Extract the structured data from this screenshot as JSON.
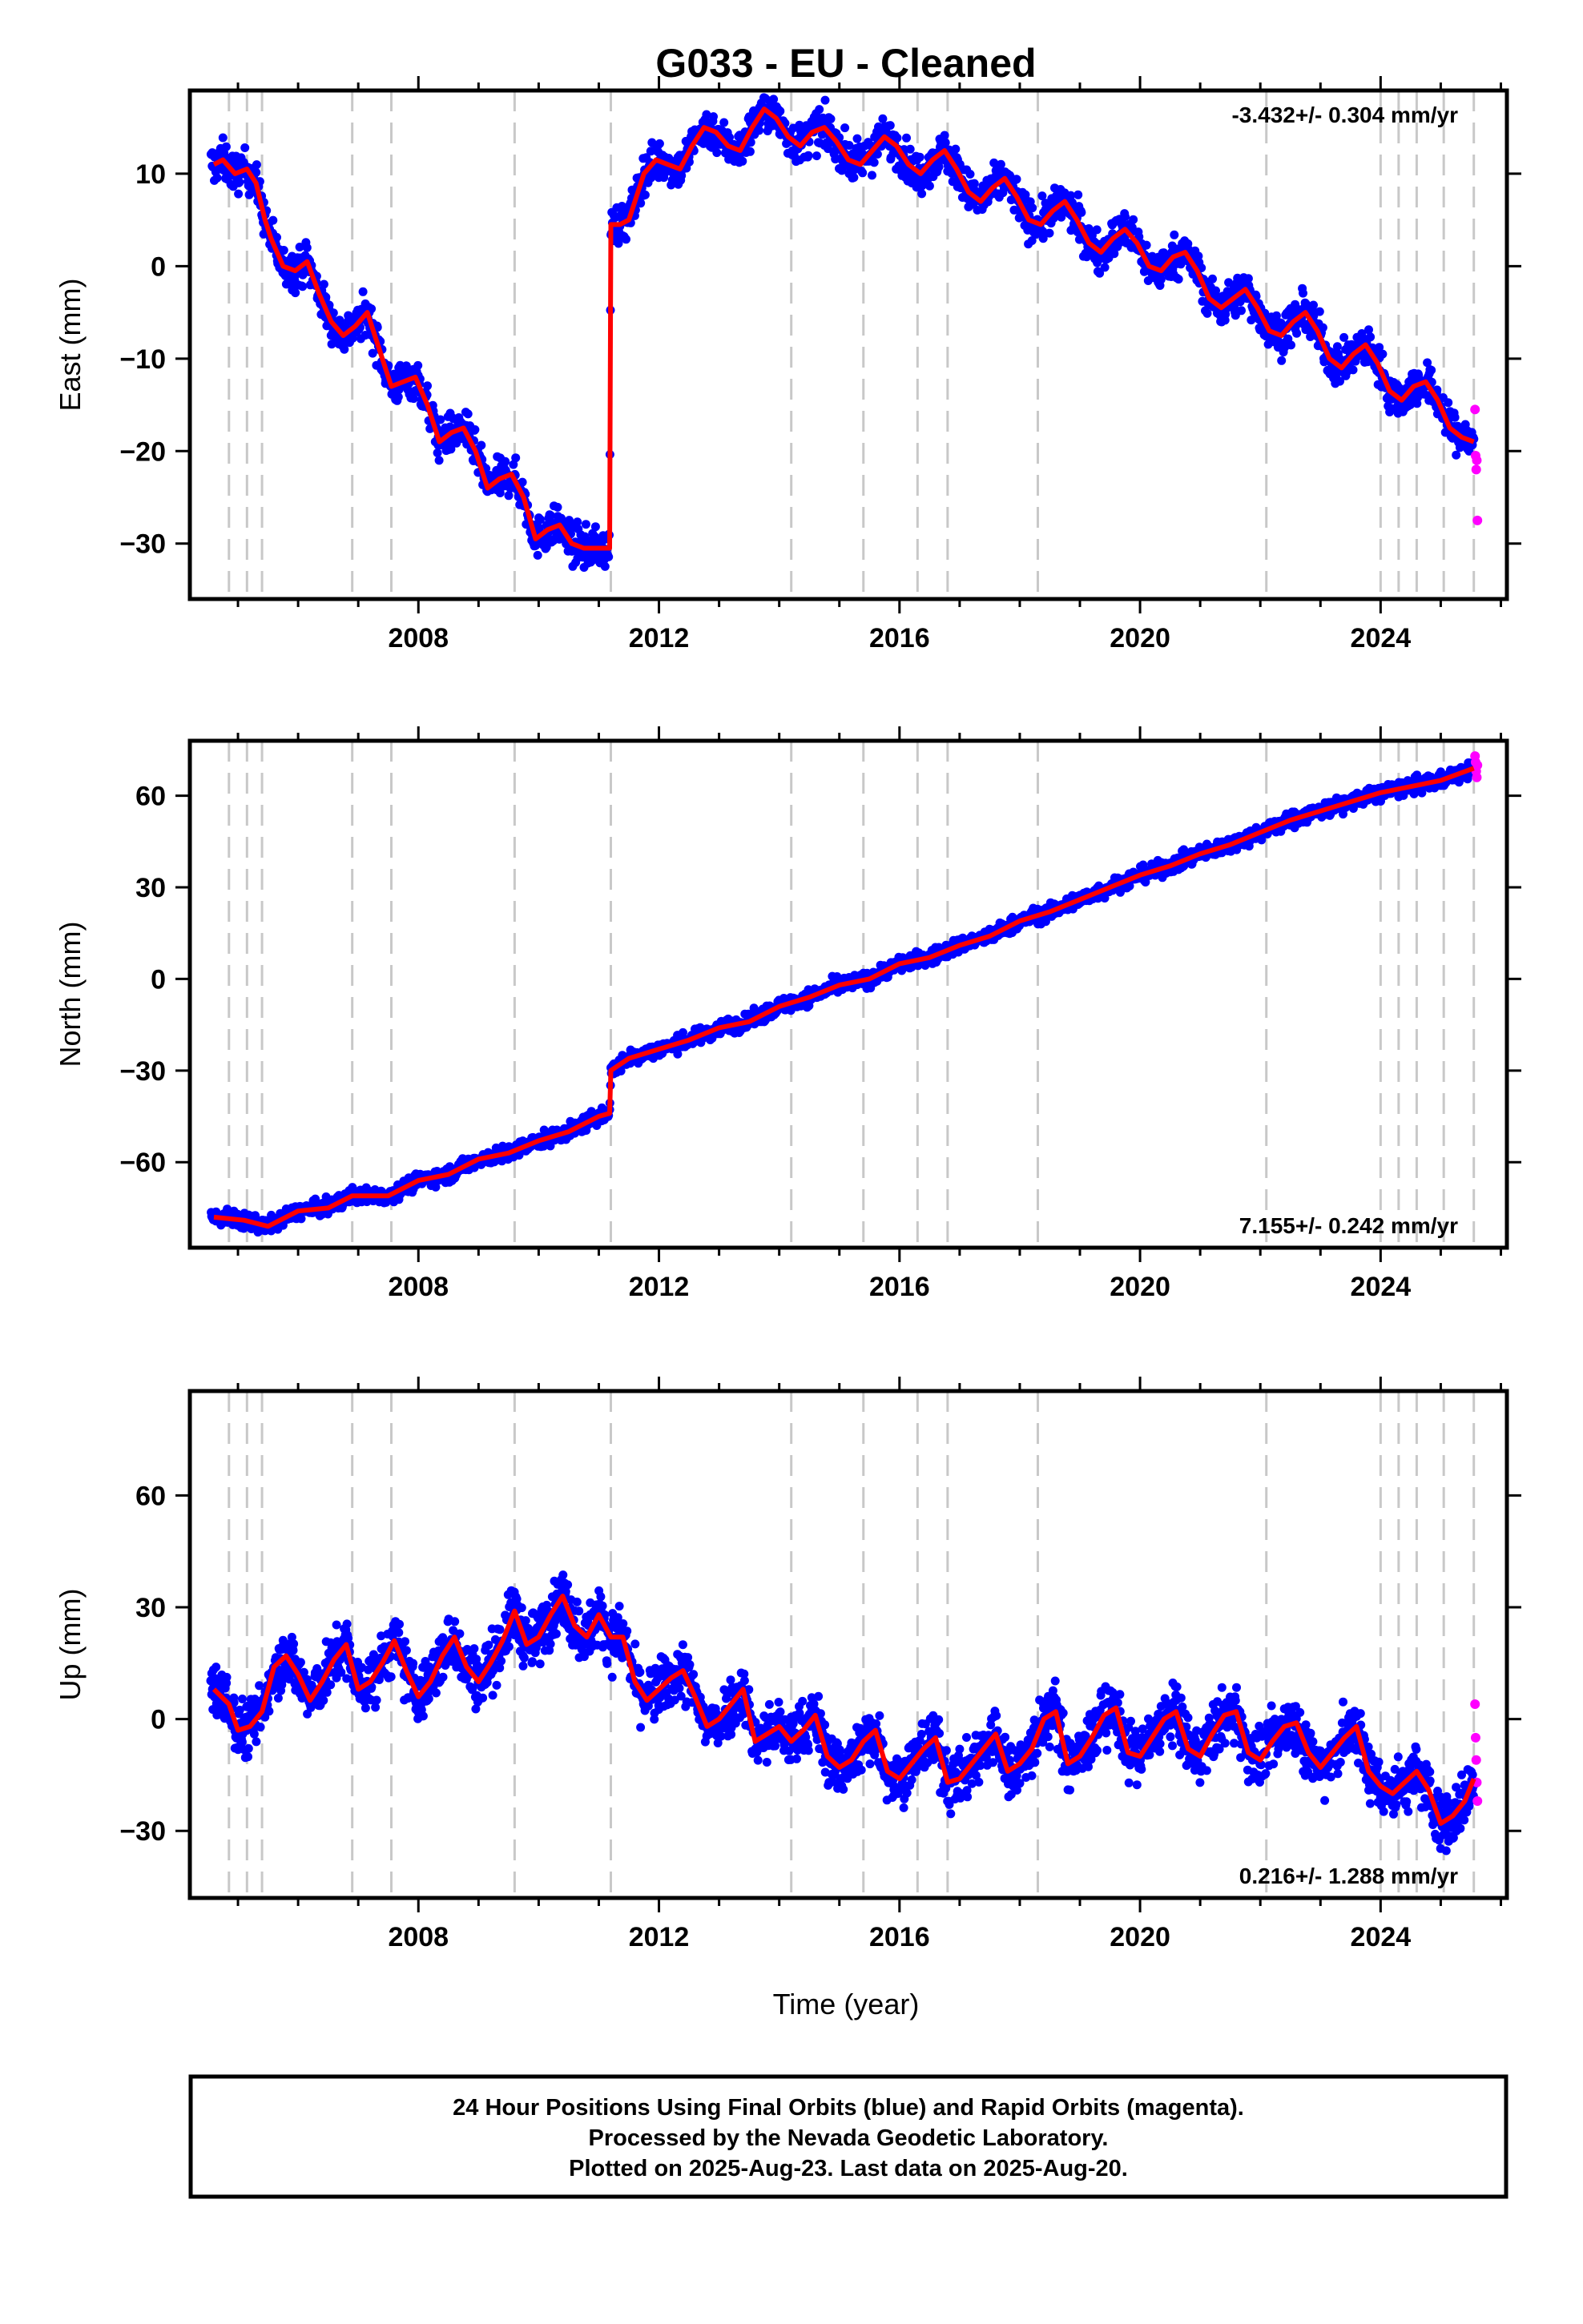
{
  "title": "G033  - EU - Cleaned",
  "colors": {
    "final_orbits": "#0000ff",
    "rapid_orbits": "#ff00ff",
    "model": "#ff0000",
    "event_lines": "#c8c8c8",
    "frame": "#000000"
  },
  "chart_data": [
    {
      "type": "scatter",
      "ylabel": "East (mm)",
      "xlabel": "",
      "xlim": [
        2004.2,
        2026.1
      ],
      "ylim": [
        -36,
        19
      ],
      "yticks": [
        -30,
        -20,
        -10,
        0,
        10
      ],
      "xticks": [
        2008,
        2012,
        2016,
        2020,
        2024
      ],
      "grid": false,
      "rate_label": "-3.432+/- 0.304 mm/yr",
      "rate_position": "top-right",
      "event_lines": [
        2004.85,
        2005.15,
        2005.4,
        2006.9,
        2007.55,
        2009.6,
        2011.2,
        2014.2,
        2015.4,
        2016.3,
        2016.8,
        2018.3,
        2022.1,
        2024.0,
        2024.3,
        2024.6,
        2025.05,
        2025.55
      ],
      "series": [
        {
          "name": "Final Orbits (blue)",
          "style": "points",
          "x_range": [
            2004.55,
            2025.55
          ],
          "scatter_halfwidth_mm": 2.5,
          "count": 2400
        },
        {
          "name": "Rapid Orbits (magenta)",
          "style": "points",
          "x": [
            2025.57,
            2025.58,
            2025.59,
            2025.6,
            2025.61
          ],
          "y": [
            -15.5,
            -20.5,
            -22,
            -21,
            -27.5
          ]
        },
        {
          "name": "model",
          "style": "line",
          "x": [
            2004.6,
            2004.75,
            2004.95,
            2005.15,
            2005.3,
            2005.45,
            2005.55,
            2005.75,
            2005.95,
            2006.15,
            2006.35,
            2006.55,
            2006.75,
            2006.95,
            2007.15,
            2007.35,
            2007.55,
            2007.75,
            2007.95,
            2008.15,
            2008.35,
            2008.55,
            2008.75,
            2008.95,
            2009.15,
            2009.35,
            2009.55,
            2009.75,
            2009.95,
            2010.15,
            2010.35,
            2010.55,
            2010.75,
            2010.95,
            2011.18,
            2011.2,
            2011.35,
            2011.5,
            2011.75,
            2011.95,
            2012.15,
            2012.35,
            2012.55,
            2012.75,
            2012.95,
            2013.15,
            2013.35,
            2013.55,
            2013.75,
            2013.95,
            2014.15,
            2014.35,
            2014.55,
            2014.75,
            2014.95,
            2015.15,
            2015.35,
            2015.55,
            2015.75,
            2015.95,
            2016.15,
            2016.35,
            2016.55,
            2016.75,
            2016.95,
            2017.15,
            2017.35,
            2017.55,
            2017.75,
            2017.95,
            2018.15,
            2018.35,
            2018.55,
            2018.75,
            2018.95,
            2019.15,
            2019.35,
            2019.55,
            2019.75,
            2019.95,
            2020.15,
            2020.35,
            2020.55,
            2020.75,
            2020.95,
            2021.15,
            2021.35,
            2021.55,
            2021.75,
            2021.95,
            2022.15,
            2022.35,
            2022.55,
            2022.75,
            2022.95,
            2023.15,
            2023.35,
            2023.55,
            2023.75,
            2023.95,
            2024.15,
            2024.35,
            2024.55,
            2024.75,
            2024.95,
            2025.15,
            2025.35,
            2025.55
          ],
          "y": [
            11,
            11.5,
            10,
            10.5,
            9,
            5,
            3,
            0,
            -0.5,
            0.5,
            -3,
            -6,
            -7.5,
            -6.5,
            -5,
            -9,
            -13,
            -12.5,
            -12,
            -15,
            -19,
            -18,
            -17.5,
            -20,
            -24,
            -23,
            -22.5,
            -25,
            -29.5,
            -28.5,
            -28,
            -30,
            -30.5,
            -30.5,
            -30.5,
            4.5,
            4.5,
            5,
            10,
            11.5,
            11,
            10.5,
            13,
            15,
            14.5,
            13,
            12.5,
            15,
            17,
            16,
            14,
            13,
            14.5,
            15,
            13.5,
            11.5,
            11,
            12.5,
            14,
            13,
            11,
            10,
            11.5,
            12.5,
            10.5,
            8,
            7,
            8.5,
            9.5,
            7.5,
            5,
            4.5,
            6,
            7,
            5,
            2.5,
            1.5,
            3,
            4,
            2.5,
            0,
            -0.5,
            1,
            1.5,
            -0.5,
            -3.5,
            -4.5,
            -3.5,
            -2.5,
            -4.5,
            -7,
            -7.5,
            -6,
            -5,
            -7,
            -10,
            -11,
            -9.5,
            -8.5,
            -10.5,
            -13.5,
            -14.5,
            -13,
            -12.5,
            -14.5,
            -17.5,
            -18.5,
            -19
          ]
        }
      ]
    },
    {
      "type": "scatter",
      "ylabel": "North (mm)",
      "xlabel": "",
      "xlim": [
        2004.2,
        2026.1
      ],
      "ylim": [
        -88,
        78
      ],
      "yticks": [
        -60,
        -30,
        0,
        30,
        60
      ],
      "xticks": [
        2008,
        2012,
        2016,
        2020,
        2024
      ],
      "grid": false,
      "rate_label": "7.155+/- 0.242 mm/yr",
      "rate_position": "bottom-right",
      "event_lines": [
        2004.85,
        2005.15,
        2005.4,
        2006.9,
        2007.55,
        2009.6,
        2011.2,
        2014.2,
        2015.4,
        2016.3,
        2016.8,
        2018.3,
        2022.1,
        2024.0,
        2024.3,
        2024.6,
        2025.05,
        2025.55
      ],
      "series": [
        {
          "name": "Final Orbits (blue)",
          "style": "points",
          "x_range": [
            2004.55,
            2025.55
          ],
          "scatter_halfwidth_mm": 3,
          "count": 2400
        },
        {
          "name": "Rapid Orbits (magenta)",
          "style": "points",
          "x": [
            2025.57,
            2025.58,
            2025.59,
            2025.6,
            2025.61
          ],
          "y": [
            73,
            71,
            68,
            66,
            70
          ]
        },
        {
          "name": "model",
          "style": "line",
          "x": [
            2004.6,
            2005.1,
            2005.5,
            2006.0,
            2006.5,
            2006.9,
            2007.5,
            2008.0,
            2008.5,
            2009.0,
            2009.5,
            2010.0,
            2010.5,
            2011.0,
            2011.18,
            2011.2,
            2011.5,
            2012.0,
            2012.5,
            2013.0,
            2013.5,
            2014.0,
            2014.5,
            2015.0,
            2015.5,
            2016.0,
            2016.5,
            2017.0,
            2017.5,
            2018.0,
            2018.5,
            2019.0,
            2019.5,
            2020.0,
            2020.5,
            2021.0,
            2021.5,
            2022.0,
            2022.5,
            2023.0,
            2023.5,
            2024.0,
            2024.5,
            2025.0,
            2025.55
          ],
          "y": [
            -78,
            -79,
            -81,
            -76,
            -75,
            -71,
            -71,
            -66,
            -64,
            -59,
            -57,
            -53,
            -50,
            -45,
            -44,
            -30,
            -26,
            -23,
            -20,
            -16,
            -14,
            -9,
            -6,
            -2,
            0,
            5,
            7,
            11,
            14,
            19,
            22,
            26,
            30,
            34,
            37,
            41,
            44,
            48,
            52,
            55,
            58,
            61,
            63,
            65,
            69
          ]
        }
      ]
    },
    {
      "type": "scatter",
      "ylabel": "Up (mm)",
      "xlabel": "Time (year)",
      "xlim": [
        2004.2,
        2026.1
      ],
      "ylim": [
        -48,
        88
      ],
      "yticks": [
        -30,
        0,
        30,
        60
      ],
      "xticks": [
        2008,
        2012,
        2016,
        2020,
        2024
      ],
      "grid": false,
      "rate_label": "0.216+/- 1.288 mm/yr",
      "rate_position": "bottom-right",
      "event_lines": [
        2004.85,
        2005.15,
        2005.4,
        2006.9,
        2007.55,
        2009.6,
        2011.2,
        2014.2,
        2015.4,
        2016.3,
        2016.8,
        2018.3,
        2022.1,
        2024.0,
        2024.3,
        2024.6,
        2025.05,
        2025.55
      ],
      "series": [
        {
          "name": "Final Orbits (blue)",
          "style": "points",
          "x_range": [
            2004.55,
            2025.55
          ],
          "scatter_halfwidth_mm": 9,
          "count": 2600
        },
        {
          "name": "Rapid Orbits (magenta)",
          "style": "points",
          "x": [
            2025.57,
            2025.58,
            2025.59,
            2025.6,
            2025.61
          ],
          "y": [
            4,
            -5,
            -11,
            -17,
            -22
          ]
        },
        {
          "name": "model",
          "style": "line",
          "x": [
            2004.6,
            2004.85,
            2005.0,
            2005.2,
            2005.4,
            2005.6,
            2005.8,
            2006.0,
            2006.2,
            2006.4,
            2006.6,
            2006.8,
            2007.0,
            2007.2,
            2007.4,
            2007.6,
            2007.8,
            2008.0,
            2008.2,
            2008.4,
            2008.6,
            2008.8,
            2009.0,
            2009.2,
            2009.4,
            2009.6,
            2009.8,
            2010.0,
            2010.2,
            2010.4,
            2010.6,
            2010.8,
            2011.0,
            2011.2,
            2011.4,
            2011.6,
            2011.8,
            2012.0,
            2012.2,
            2012.4,
            2012.6,
            2012.8,
            2013.0,
            2013.2,
            2013.4,
            2013.6,
            2013.8,
            2014.0,
            2014.2,
            2014.4,
            2014.6,
            2014.8,
            2015.0,
            2015.2,
            2015.4,
            2015.6,
            2015.8,
            2016.0,
            2016.2,
            2016.4,
            2016.6,
            2016.8,
            2017.0,
            2017.2,
            2017.4,
            2017.6,
            2017.8,
            2018.0,
            2018.2,
            2018.4,
            2018.6,
            2018.8,
            2019.0,
            2019.2,
            2019.4,
            2019.6,
            2019.8,
            2020.0,
            2020.2,
            2020.4,
            2020.6,
            2020.8,
            2021.0,
            2021.2,
            2021.4,
            2021.6,
            2021.8,
            2022.0,
            2022.2,
            2022.4,
            2022.6,
            2022.8,
            2023.0,
            2023.2,
            2023.4,
            2023.6,
            2023.8,
            2024.0,
            2024.2,
            2024.4,
            2024.6,
            2024.8,
            2025.0,
            2025.2,
            2025.4,
            2025.55
          ],
          "y": [
            8,
            4,
            -3,
            -2,
            2,
            14,
            17,
            12,
            5,
            10,
            16,
            20,
            8,
            10,
            15,
            21,
            13,
            6,
            10,
            17,
            22,
            14,
            10,
            15,
            21,
            29,
            20,
            22,
            28,
            33,
            25,
            22,
            28,
            22,
            22,
            10,
            5,
            8,
            11,
            13,
            6,
            -2,
            0,
            4,
            8,
            -6,
            -4,
            -2,
            -6,
            -3,
            1,
            -10,
            -13,
            -11,
            -6,
            -3,
            -14,
            -16,
            -12,
            -8,
            -5,
            -17,
            -16,
            -12,
            -8,
            -4,
            -14,
            -12,
            -8,
            0,
            2,
            -12,
            -10,
            -5,
            1,
            3,
            -9,
            -10,
            -5,
            0,
            2,
            -8,
            -10,
            -4,
            1,
            2,
            -9,
            -11,
            -6,
            -2,
            -1,
            -9,
            -13,
            -9,
            -5,
            -2,
            -14,
            -18,
            -20,
            -17,
            -14,
            -19,
            -28,
            -26,
            -22,
            -16
          ]
        }
      ]
    }
  ],
  "footer": {
    "line1": "24 Hour Positions Using Final Orbits (blue) and Rapid Orbits (magenta).",
    "line2": "Processed by the Nevada Geodetic Laboratory.",
    "line3": "Plotted on 2025-Aug-23. Last data on 2025-Aug-20."
  }
}
